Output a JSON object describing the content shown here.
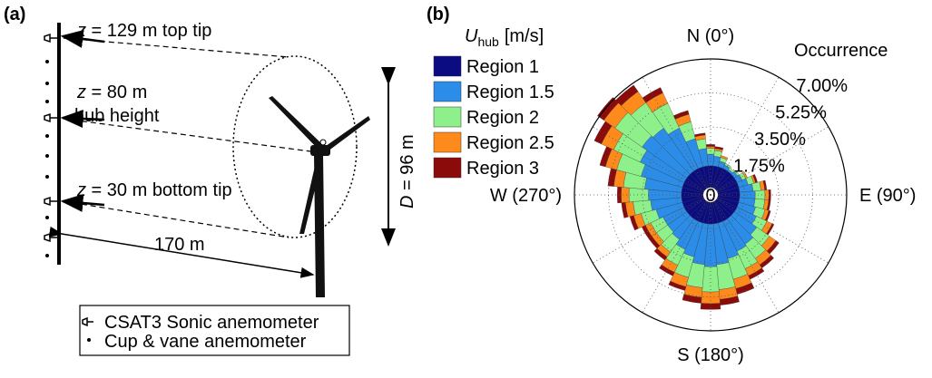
{
  "panel_a": {
    "label": "(a)",
    "annotations": [
      {
        "var": "z",
        "text": " = 129 m top tip"
      },
      {
        "var": "z",
        "text": " = 80 m"
      },
      {
        "var": "",
        "text": "hub height"
      },
      {
        "var": "z",
        "text": " = 30 m bottom tip"
      },
      {
        "var": "",
        "text": "170 m"
      },
      {
        "var": "D",
        "text": " = 96 m"
      }
    ],
    "legend": [
      "CSAT3 Sonic anemometer",
      "Cup & vane anemometer"
    ]
  },
  "chart_data": {
    "type": "windrose",
    "panel_label": "(b)",
    "legend_title": {
      "symbol": "U",
      "subscript": "hub",
      "unit": "[m/s]"
    },
    "r_title": "Occurrence",
    "directions": [
      0,
      10,
      20,
      30,
      40,
      50,
      60,
      70,
      80,
      90,
      100,
      110,
      120,
      130,
      140,
      150,
      160,
      170,
      180,
      190,
      200,
      210,
      220,
      230,
      240,
      250,
      260,
      270,
      280,
      290,
      300,
      310,
      320,
      330,
      340,
      350
    ],
    "theta_ticks": [
      {
        "value": 0,
        "label": "N (0°)"
      },
      {
        "value": 90,
        "label": "E (90°)"
      },
      {
        "value": 180,
        "label": "S (180°)"
      },
      {
        "value": 270,
        "label": "W (270°)"
      }
    ],
    "rlim": [
      0,
      7
    ],
    "rticks": [
      0,
      {
        "value": 1.75,
        "label": "1.75%"
      },
      {
        "value": 3.5,
        "label": "3.50%"
      },
      {
        "value": 5.25,
        "label": "5.25%"
      },
      {
        "value": 7,
        "label": "7.00%"
      }
    ],
    "grid": true,
    "series": [
      {
        "name": "Region 1",
        "color": "#0b0b82",
        "values": [
          1.5,
          1.5,
          1.5,
          1.5,
          1.5,
          1.5,
          1.5,
          1.5,
          1.5,
          1.5,
          1.5,
          1.5,
          1.5,
          1.5,
          1.5,
          1.5,
          1.5,
          1.5,
          1.5,
          1.5,
          1.5,
          1.5,
          1.5,
          1.5,
          1.5,
          1.5,
          1.5,
          1.5,
          1.5,
          1.5,
          1.5,
          1.5,
          1.5,
          1.5,
          1.5,
          1.5
        ]
      },
      {
        "name": "Region 1.5",
        "color": "#2b8de8",
        "values": [
          0.6,
          0.5,
          0.3,
          0.2,
          0.1,
          0.2,
          0.3,
          0.5,
          0.7,
          0.8,
          0.8,
          0.9,
          1.1,
          1.4,
          1.6,
          1.7,
          1.9,
          2.1,
          2.2,
          2.1,
          1.8,
          1.6,
          1.3,
          1.2,
          1.2,
          1.4,
          1.6,
          1.7,
          1.9,
          2.2,
          2.5,
          2.8,
          2.7,
          2.3,
          1.5,
          0.9
        ]
      },
      {
        "name": "Region 2",
        "color": "#8ef08a",
        "values": [
          0.3,
          0.3,
          0.2,
          0.1,
          0.1,
          0.1,
          0.2,
          0.3,
          0.4,
          0.5,
          0.5,
          0.5,
          0.6,
          0.8,
          0.9,
          1.0,
          1.1,
          1.3,
          1.3,
          1.2,
          1.1,
          0.9,
          0.8,
          0.7,
          0.7,
          0.8,
          0.9,
          1.0,
          1.1,
          1.3,
          1.5,
          1.7,
          1.6,
          1.4,
          0.9,
          0.5
        ]
      },
      {
        "name": "Region 2.5",
        "color": "#ff8a1c",
        "values": [
          0.1,
          0.1,
          0.1,
          0,
          0,
          0,
          0.1,
          0.1,
          0.2,
          0.2,
          0.2,
          0.2,
          0.3,
          0.4,
          0.4,
          0.4,
          0.5,
          0.5,
          0.6,
          0.5,
          0.5,
          0.4,
          0.3,
          0.3,
          0.3,
          0.4,
          0.4,
          0.4,
          0.5,
          0.6,
          0.7,
          0.7,
          0.7,
          0.6,
          0.4,
          0.2
        ]
      },
      {
        "name": "Region 3",
        "color": "#8b0b0b",
        "values": [
          0.1,
          0.1,
          0,
          0,
          0,
          0,
          0,
          0.1,
          0.1,
          0.1,
          0.1,
          0.1,
          0.1,
          0.2,
          0.2,
          0.2,
          0.3,
          0.3,
          0.3,
          0.3,
          0.2,
          0.2,
          0.2,
          0.2,
          0.2,
          0.2,
          0.2,
          0.2,
          0.3,
          0.3,
          0.4,
          0.4,
          0.4,
          0.3,
          0.2,
          0.1
        ]
      }
    ]
  }
}
